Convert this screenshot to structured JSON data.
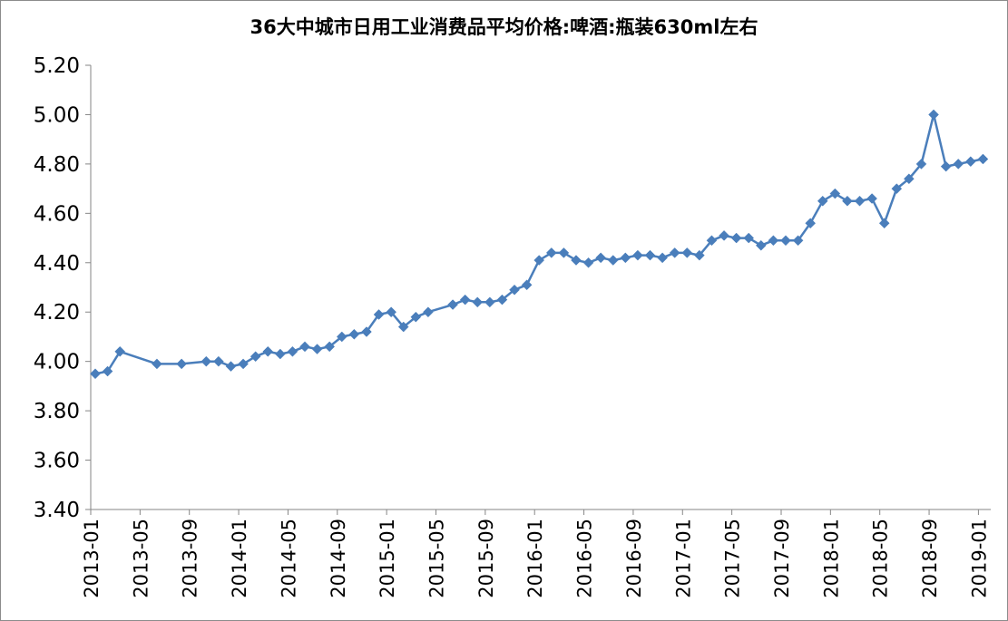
{
  "chart_data": {
    "type": "line",
    "title": "36大中城市日用工业消费品平均价格:啤酒:瓶装630ml左右",
    "ylim": [
      3.4,
      5.2
    ],
    "y_ticks": [
      "3.40",
      "3.60",
      "3.80",
      "4.00",
      "4.20",
      "4.40",
      "4.60",
      "4.80",
      "5.00",
      "5.20"
    ],
    "x_tick_labels": [
      "2013-01",
      "2013-05",
      "2013-09",
      "2014-01",
      "2014-05",
      "2014-09",
      "2015-01",
      "2015-05",
      "2015-09",
      "2016-01",
      "2016-05",
      "2016-09",
      "2017-01",
      "2017-05",
      "2017-09",
      "2018-01",
      "2018-05",
      "2018-09",
      "2019-01"
    ],
    "line_color": "#4a7ebb",
    "grid": false,
    "legend": "none",
    "series": [
      {
        "x": [
          "2013-01",
          "2013-02",
          "2013-03",
          "2013-06",
          "2013-08",
          "2013-10",
          "2013-11",
          "2013-12",
          "2014-01",
          "2014-02",
          "2014-03",
          "2014-04",
          "2014-05",
          "2014-06",
          "2014-07",
          "2014-08",
          "2014-09",
          "2014-10",
          "2014-11",
          "2014-12",
          "2015-01",
          "2015-02",
          "2015-03",
          "2015-04",
          "2015-06",
          "2015-07",
          "2015-08",
          "2015-09",
          "2015-10",
          "2015-11",
          "2015-12",
          "2016-01",
          "2016-02",
          "2016-03",
          "2016-04",
          "2016-05",
          "2016-06",
          "2016-07",
          "2016-08",
          "2016-09",
          "2016-10",
          "2016-11",
          "2016-12",
          "2017-01",
          "2017-02",
          "2017-03",
          "2017-04",
          "2017-05",
          "2017-06",
          "2017-07",
          "2017-08",
          "2017-09",
          "2017-10",
          "2017-11",
          "2017-12",
          "2018-01",
          "2018-02",
          "2018-03",
          "2018-04",
          "2018-05",
          "2018-06",
          "2018-07",
          "2018-08",
          "2018-09",
          "2018-10",
          "2018-11",
          "2018-12",
          "2019-01"
        ],
        "values": [
          3.95,
          3.96,
          4.04,
          3.99,
          3.99,
          4.0,
          4.0,
          3.98,
          3.99,
          4.02,
          4.04,
          4.03,
          4.04,
          4.06,
          4.05,
          4.06,
          4.1,
          4.11,
          4.12,
          4.19,
          4.2,
          4.14,
          4.18,
          4.2,
          4.23,
          4.25,
          4.24,
          4.24,
          4.25,
          4.29,
          4.31,
          4.41,
          4.44,
          4.44,
          4.41,
          4.4,
          4.42,
          4.41,
          4.42,
          4.43,
          4.43,
          4.42,
          4.44,
          4.44,
          4.43,
          4.49,
          4.51,
          4.5,
          4.5,
          4.47,
          4.49,
          4.49,
          4.49,
          4.56,
          4.65,
          4.68,
          4.65,
          4.65,
          4.66,
          4.56,
          4.7,
          4.74,
          4.8,
          5.0,
          4.79,
          4.8,
          4.81,
          4.82
        ]
      }
    ]
  }
}
